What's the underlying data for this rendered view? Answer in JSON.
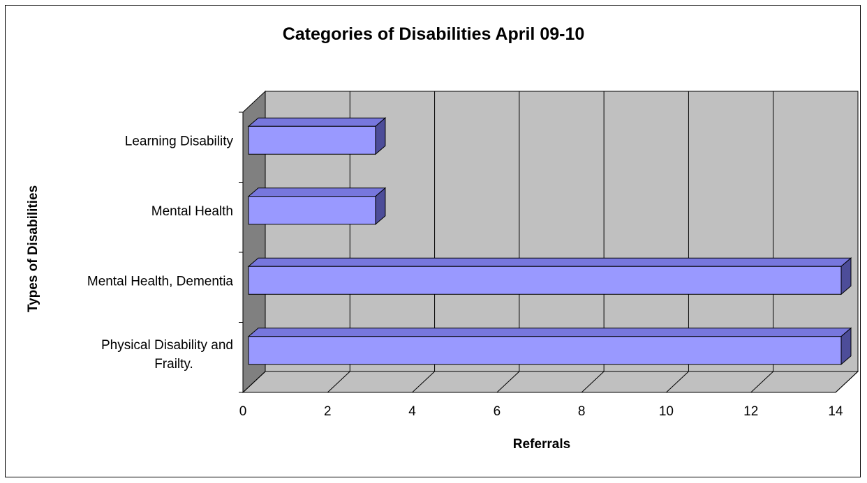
{
  "chart_data": {
    "type": "bar",
    "orientation": "horizontal",
    "three_d": true,
    "title": "Categories of Disabilities April 09-10",
    "xlabel": "Referrals",
    "ylabel": "Types of Disabilities",
    "categories": [
      "Learning Disability",
      "Mental Health",
      "Mental Health, Dementia",
      "Physical Disability and Frailty."
    ],
    "values": [
      3,
      3,
      14,
      14
    ],
    "xlim": [
      0,
      14
    ],
    "x_ticks": [
      "0",
      "2",
      "4",
      "6",
      "8",
      "10",
      "12",
      "14"
    ],
    "grid": true,
    "legend": "none",
    "colors": {
      "bar_front": "#9999ff",
      "bar_top": "#7777dd",
      "bar_side": "#4d4d99",
      "wall": "#c0c0c0",
      "side_wall": "#808080"
    }
  }
}
